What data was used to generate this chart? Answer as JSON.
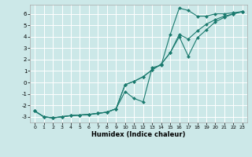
{
  "xlabel": "Humidex (Indice chaleur)",
  "bg_color": "#cce8e8",
  "grid_color": "#ffffff",
  "line_color": "#1a7a6e",
  "xlim": [
    -0.5,
    23.5
  ],
  "ylim": [
    -3.5,
    6.8
  ],
  "yticks": [
    -3,
    -2,
    -1,
    0,
    1,
    2,
    3,
    4,
    5,
    6
  ],
  "xticks": [
    0,
    1,
    2,
    3,
    4,
    5,
    6,
    7,
    8,
    9,
    10,
    11,
    12,
    13,
    14,
    15,
    16,
    17,
    18,
    19,
    20,
    21,
    22,
    23
  ],
  "series1_y": [
    -2.5,
    -3.0,
    -3.1,
    -3.0,
    -2.9,
    -2.85,
    -2.8,
    -2.7,
    -2.6,
    -2.3,
    -0.8,
    -1.4,
    -1.7,
    1.3,
    1.5,
    4.2,
    6.5,
    6.3,
    5.8,
    5.8,
    6.0,
    6.0,
    6.1,
    6.2
  ],
  "series2_y": [
    -2.5,
    -3.0,
    -3.1,
    -3.0,
    -2.9,
    -2.85,
    -2.8,
    -2.7,
    -2.6,
    -2.3,
    -0.2,
    0.1,
    0.5,
    1.1,
    1.6,
    2.6,
    4.2,
    3.8,
    4.5,
    5.1,
    5.5,
    5.8,
    6.0,
    6.2
  ],
  "series3_y": [
    -2.5,
    -3.0,
    -3.1,
    -3.0,
    -2.9,
    -2.85,
    -2.8,
    -2.7,
    -2.6,
    -2.3,
    -0.2,
    0.1,
    0.5,
    1.1,
    1.6,
    2.6,
    4.0,
    2.3,
    3.9,
    4.6,
    5.3,
    5.7,
    6.0,
    6.2
  ]
}
